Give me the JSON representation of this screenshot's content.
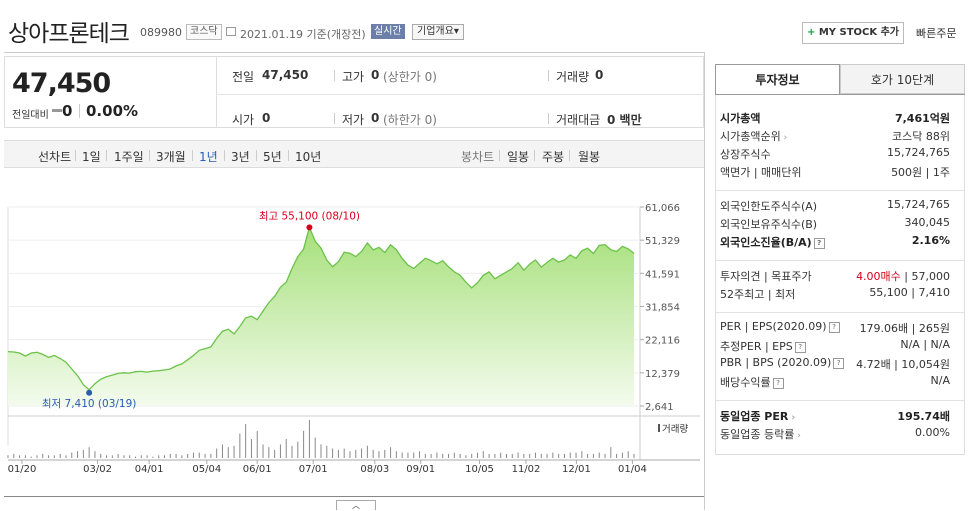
{
  "header": {
    "company": "상아프론테크",
    "code": "089980",
    "market": "코스닥",
    "date": "2021.01.19 기준(개장전)",
    "realtime": "실시간",
    "corp_info": "기업개요",
    "corp_info_arrow": "▾",
    "mystock_plus": "+",
    "mystock": "MY STOCK 추가",
    "quick_order": "빠른주문"
  },
  "price": {
    "current": "47,450",
    "change_label": "전일대비",
    "change": "0",
    "change_pct": "0.00%",
    "stats": {
      "prev_label": "전일",
      "prev": "47,450",
      "high_label": "고가",
      "high": "0",
      "high_limit": "(상한가 0)",
      "volume_label": "거래량",
      "volume": "0",
      "open_label": "시가",
      "open": "0",
      "low_label": "저가",
      "low": "0",
      "low_limit": "(하한가 0)",
      "amount_label": "거래대금",
      "amount": "0 백만"
    }
  },
  "periods": {
    "line_label": "선차트",
    "line": [
      "1일",
      "1주일",
      "3개월",
      "1년",
      "3년",
      "5년",
      "10년"
    ],
    "active": "1년",
    "candle_label": "봉차트",
    "candle": [
      "일봉",
      "주봉",
      "월봉"
    ]
  },
  "chart_data": {
    "type": "area",
    "y_ticks": [
      "61,066",
      "51,329",
      "41,591",
      "31,854",
      "22,116",
      "12,379",
      "2,641"
    ],
    "ylim": [
      2641,
      61066
    ],
    "x_ticks": [
      "01/20",
      "03/02",
      "04/01",
      "05/04",
      "06/01",
      "07/01",
      "08/03",
      "09/01",
      "10/05",
      "11/02",
      "12/01",
      "01/04"
    ],
    "high_label": "최고 55,100 (08/10)",
    "low_label": "최저 7,410 (03/19)",
    "volume_label": "거래량",
    "series": [
      {
        "values": [
          18600,
          18500,
          18200,
          17300,
          18200,
          18400,
          17800,
          16900,
          17500,
          16600,
          15500,
          13500,
          11500,
          8900,
          7410,
          9200,
          10500,
          11200,
          11700,
          12200,
          12400,
          12300,
          12700,
          12800,
          12600,
          12900,
          13000,
          13200,
          13500,
          14400,
          15000,
          16200,
          17500,
          19000,
          19500,
          20000,
          22500,
          24600,
          25200,
          23800,
          26000,
          28500,
          29000,
          28000,
          30500,
          33000,
          34800,
          37500,
          39000,
          43000,
          46500,
          48700,
          55100,
          51000,
          49000,
          45500,
          43500,
          45000,
          47800,
          47500,
          46500,
          48000,
          50500,
          48500,
          49200,
          47700,
          50000,
          48500,
          46000,
          44000,
          43000,
          44500,
          46000,
          45300,
          44400,
          45300,
          43500,
          42000,
          41000,
          39000,
          37300,
          38800,
          41000,
          42000,
          40000,
          41000,
          42000,
          43000,
          44700,
          42500,
          44300,
          45500,
          43400,
          44800,
          46000,
          44900,
          45500,
          47000,
          46000,
          48200,
          49000,
          47400,
          49800,
          50000,
          48500,
          48000,
          49500,
          48800,
          47450
        ]
      }
    ],
    "volume": [
      2,
      3,
      2,
      2,
      1,
      2,
      3,
      2,
      2,
      3,
      2,
      4,
      5,
      6,
      8,
      5,
      3,
      2,
      2,
      3,
      2,
      2,
      1,
      2,
      2,
      1,
      2,
      2,
      3,
      3,
      2,
      3,
      4,
      4,
      3,
      3,
      7,
      10,
      8,
      9,
      18,
      25,
      14,
      20,
      10,
      8,
      6,
      10,
      14,
      9,
      12,
      20,
      28,
      15,
      10,
      9,
      7,
      6,
      7,
      5,
      6,
      7,
      9,
      6,
      5,
      6,
      8,
      5,
      4,
      4,
      4,
      5,
      3,
      3,
      4,
      3,
      3,
      4,
      3,
      2,
      3,
      4,
      5,
      3,
      3,
      4,
      3,
      3,
      4,
      3,
      3,
      4,
      3,
      3,
      4,
      3,
      3,
      4,
      4,
      5,
      3,
      3,
      4,
      3,
      8,
      3,
      4,
      5,
      3
    ]
  },
  "right": {
    "tab_active": "투자정보",
    "tab_inactive": "호가 10단계",
    "rows": [
      {
        "label": "시가총액",
        "value": "7,461억원",
        "bold": true
      },
      {
        "label": "시가총액순위",
        "value": "코스닥 88위",
        "arrow": true
      },
      {
        "label": "상장주식수",
        "value": "15,724,765"
      },
      {
        "label": "액면가 | 매매단위",
        "value": "500원 | 1주"
      },
      {
        "label": "외국인한도주식수(A)",
        "value": "15,724,765"
      },
      {
        "label": "외국인보유주식수(B)",
        "value": "340,045"
      },
      {
        "label": "외국인소진율(B/A)",
        "value": "2.16%",
        "bold": true,
        "help": true
      },
      {
        "label": "투자의견 | 목표주가",
        "value_red": "4.00매수",
        "value": " | 57,000"
      },
      {
        "label": "52주최고 | 최저",
        "value": "55,100 | 7,410"
      },
      {
        "label": "PER | EPS(2020.09)",
        "value": "179.06배 | 265원",
        "help": true
      },
      {
        "label": "추정PER | EPS",
        "value": "N/A | N/A",
        "help": true
      },
      {
        "label": "PBR | BPS (2020.09)",
        "value": "4.72배 | 10,054원",
        "help": true
      },
      {
        "label": "배당수익률",
        "value": "N/A",
        "help": true
      },
      {
        "label": "동일업종 PER",
        "value": "195.74배",
        "bold": true,
        "arrow": true
      },
      {
        "label": "동일업종 등락률",
        "value": "0.00%",
        "arrow": true
      }
    ],
    "help_glyph": "?",
    "arrow_glyph": "›"
  },
  "fold_glyph": "︿"
}
